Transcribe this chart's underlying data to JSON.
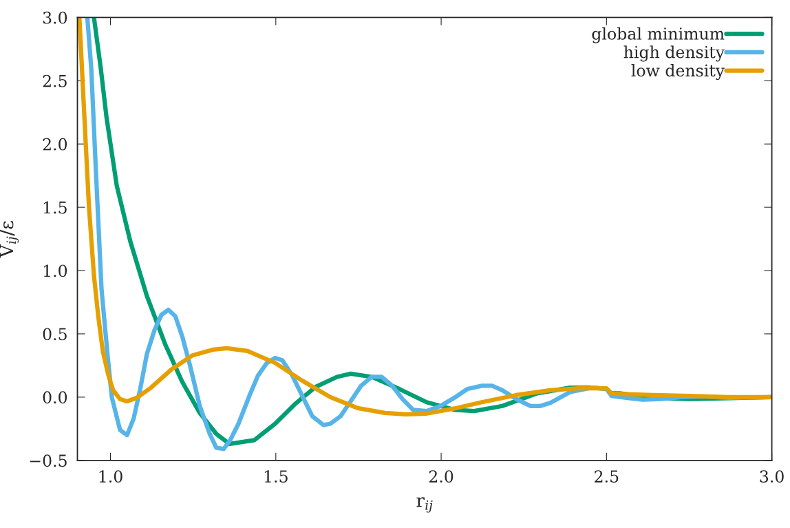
{
  "chart_data": {
    "type": "line",
    "xlabel": "r$_{ij}$",
    "ylabel": "V$_{ij}$/ε",
    "xlim": [
      0.9,
      3.0
    ],
    "ylim": [
      -0.5,
      3.0
    ],
    "xticks": [
      {
        "value": 1,
        "label": "1.0"
      },
      1.5,
      {
        "value": 2,
        "label": "2.0"
      },
      2.5,
      {
        "value": 3,
        "label": "3.0"
      }
    ],
    "yticks": [
      {
        "value": -0.5,
        "label": "−0.5"
      },
      {
        "value": 0,
        "label": "0.0"
      },
      0.5,
      {
        "value": 1,
        "label": "1.0"
      },
      1.5,
      {
        "value": 2,
        "label": "2.0"
      },
      2.5,
      {
        "value": 3,
        "label": "3.0"
      }
    ],
    "legend": "top right",
    "grid": false,
    "line_style": "solid",
    "marker": "none",
    "series": [
      {
        "name": "global minimum",
        "color": "#009e73",
        "x": [
          0.95,
          0.971,
          0.988,
          1.019,
          1.06,
          1.11,
          1.165,
          1.217,
          1.27,
          1.32,
          1.36,
          1.435,
          1.498,
          1.56,
          1.62,
          1.685,
          1.727,
          1.79,
          1.873,
          1.956,
          2.04,
          2.1,
          2.185,
          2.29,
          2.39,
          2.456,
          2.5,
          2.515,
          2.54,
          2.64,
          2.75,
          2.85,
          3.0
        ],
        "values": [
          3.0,
          2.59,
          2.21,
          1.67,
          1.23,
          0.8,
          0.42,
          0.12,
          -0.125,
          -0.29,
          -0.37,
          -0.34,
          -0.21,
          -0.05,
          0.08,
          0.16,
          0.185,
          0.16,
          0.065,
          -0.04,
          -0.1,
          -0.11,
          -0.07,
          0.03,
          0.075,
          0.075,
          0.065,
          0.03,
          0.03,
          -0.005,
          -0.015,
          -0.01,
          0.0
        ]
      },
      {
        "name": "high density",
        "color": "#56b4e9",
        "x": [
          0.93,
          0.942,
          0.956,
          0.973,
          0.992,
          1.004,
          1.029,
          1.05,
          1.07,
          1.09,
          1.11,
          1.133,
          1.154,
          1.175,
          1.196,
          1.217,
          1.24,
          1.27,
          1.3,
          1.32,
          1.342,
          1.362,
          1.387,
          1.42,
          1.446,
          1.473,
          1.498,
          1.52,
          1.55,
          1.58,
          1.61,
          1.644,
          1.665,
          1.696,
          1.727,
          1.758,
          1.79,
          1.82,
          1.852,
          1.883,
          1.915,
          1.956,
          1.998,
          2.04,
          2.08,
          2.123,
          2.154,
          2.185,
          2.227,
          2.27,
          2.3,
          2.33,
          2.39,
          2.456,
          2.5,
          2.515,
          2.56,
          2.61,
          2.665,
          2.727,
          2.79,
          2.87,
          3.0
        ],
        "values": [
          3.0,
          2.59,
          1.78,
          0.85,
          0.31,
          0.0,
          -0.26,
          -0.3,
          -0.17,
          0.065,
          0.34,
          0.53,
          0.65,
          0.69,
          0.64,
          0.48,
          0.255,
          -0.07,
          -0.29,
          -0.4,
          -0.41,
          -0.34,
          -0.21,
          0.01,
          0.17,
          0.27,
          0.31,
          0.29,
          0.17,
          0.01,
          -0.15,
          -0.22,
          -0.21,
          -0.15,
          -0.03,
          0.09,
          0.16,
          0.16,
          0.09,
          -0.015,
          -0.1,
          -0.11,
          -0.07,
          -0.005,
          0.065,
          0.09,
          0.09,
          0.055,
          -0.015,
          -0.07,
          -0.07,
          -0.045,
          0.04,
          0.075,
          0.065,
          0.01,
          -0.005,
          -0.02,
          -0.015,
          0.0,
          0.005,
          -0.005,
          0.0
        ]
      },
      {
        "name": "low density",
        "color": "#e69f00",
        "x": [
          0.906,
          0.919,
          0.935,
          0.95,
          0.963,
          0.977,
          0.994,
          1.008,
          1.029,
          1.05,
          1.08,
          1.123,
          1.185,
          1.248,
          1.31,
          1.352,
          1.415,
          1.498,
          1.58,
          1.665,
          1.748,
          1.83,
          1.894,
          1.956,
          2.04,
          2.123,
          2.227,
          2.33,
          2.415,
          2.5,
          2.515,
          2.64,
          2.75,
          2.87,
          3.0
        ],
        "values": [
          3.0,
          2.32,
          1.5,
          0.96,
          0.64,
          0.36,
          0.17,
          0.054,
          -0.016,
          -0.033,
          -0.005,
          0.076,
          0.22,
          0.33,
          0.375,
          0.386,
          0.364,
          0.27,
          0.13,
          0.0,
          -0.087,
          -0.125,
          -0.136,
          -0.13,
          -0.09,
          -0.04,
          0.016,
          0.054,
          0.07,
          0.07,
          0.027,
          0.016,
          0.01,
          0.0,
          0.0
        ]
      }
    ]
  }
}
